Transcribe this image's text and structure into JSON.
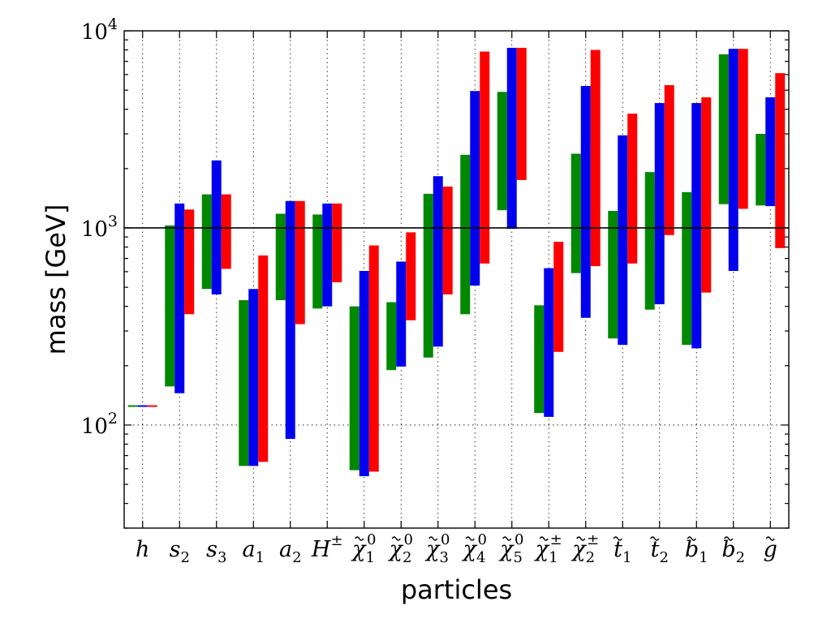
{
  "chart_data": {
    "type": "bar",
    "xlabel": "particles",
    "ylabel": "mass [GeV]",
    "yscale": "log",
    "ylim": [
      30,
      10000
    ],
    "y_tick_labels": [
      {
        "base": "10",
        "exp": "2",
        "value": 100
      },
      {
        "base": "10",
        "exp": "3",
        "value": 1000
      },
      {
        "base": "10",
        "exp": "4",
        "value": 10000
      }
    ],
    "grid": true,
    "reference_line": 1000,
    "categories": [
      {
        "base": "h",
        "sup": "",
        "sub": "",
        "tilde": false
      },
      {
        "base": "s",
        "sup": "",
        "sub": "2",
        "tilde": false
      },
      {
        "base": "s",
        "sup": "",
        "sub": "3",
        "tilde": false
      },
      {
        "base": "a",
        "sup": "",
        "sub": "1",
        "tilde": false
      },
      {
        "base": "a",
        "sup": "",
        "sub": "2",
        "tilde": false
      },
      {
        "base": "H",
        "sup": "±",
        "sub": "",
        "tilde": false
      },
      {
        "base": "χ",
        "sup": "0",
        "sub": "1",
        "tilde": true
      },
      {
        "base": "χ",
        "sup": "0",
        "sub": "2",
        "tilde": true
      },
      {
        "base": "χ",
        "sup": "0",
        "sub": "3",
        "tilde": true
      },
      {
        "base": "χ",
        "sup": "0",
        "sub": "4",
        "tilde": true
      },
      {
        "base": "χ",
        "sup": "0",
        "sub": "5",
        "tilde": true
      },
      {
        "base": "χ",
        "sup": "±",
        "sub": "1",
        "tilde": true
      },
      {
        "base": "χ",
        "sup": "±",
        "sub": "2",
        "tilde": true
      },
      {
        "base": "t",
        "sup": "",
        "sub": "1",
        "tilde": true
      },
      {
        "base": "t",
        "sup": "",
        "sub": "2",
        "tilde": true
      },
      {
        "base": "b",
        "sup": "",
        "sub": "1",
        "tilde": true
      },
      {
        "base": "b",
        "sup": "",
        "sub": "2",
        "tilde": true
      },
      {
        "base": "g",
        "sup": "",
        "sub": "",
        "tilde": true
      }
    ],
    "series": [
      {
        "color": "#008800",
        "ranges": [
          [
            124,
            126
          ],
          [
            157,
            1030
          ],
          [
            490,
            1480
          ],
          [
            62,
            430
          ],
          [
            430,
            1180
          ],
          [
            390,
            1170
          ],
          [
            59,
            400
          ],
          [
            190,
            420
          ],
          [
            220,
            1490
          ],
          [
            365,
            2350
          ],
          [
            1230,
            4900
          ],
          [
            115,
            405
          ],
          [
            590,
            2380
          ],
          [
            275,
            1220
          ],
          [
            385,
            1920
          ],
          [
            255,
            1520
          ],
          [
            1320,
            7600
          ],
          [
            1300,
            3000
          ]
        ]
      },
      {
        "color": "#0000ee",
        "ranges": [
          [
            124,
            126
          ],
          [
            145,
            1330
          ],
          [
            460,
            2200
          ],
          [
            62,
            490
          ],
          [
            85,
            1370
          ],
          [
            400,
            1330
          ],
          [
            55,
            605
          ],
          [
            198,
            675
          ],
          [
            250,
            1830
          ],
          [
            510,
            4950
          ],
          [
            990,
            8200
          ],
          [
            110,
            625
          ],
          [
            350,
            5250
          ],
          [
            255,
            2950
          ],
          [
            410,
            4300
          ],
          [
            245,
            4300
          ],
          [
            605,
            8100
          ],
          [
            1290,
            4600
          ]
        ]
      },
      {
        "color": "#ff0000",
        "ranges": [
          [
            124,
            126
          ],
          [
            365,
            1240
          ],
          [
            620,
            1480
          ],
          [
            65,
            725
          ],
          [
            325,
            1370
          ],
          [
            530,
            1330
          ],
          [
            58,
            815
          ],
          [
            340,
            950
          ],
          [
            460,
            1620
          ],
          [
            660,
            7850
          ],
          [
            1750,
            8200
          ],
          [
            235,
            850
          ],
          [
            640,
            8000
          ],
          [
            660,
            3800
          ],
          [
            920,
            5300
          ],
          [
            470,
            4600
          ],
          [
            1250,
            8100
          ],
          [
            790,
            6100
          ]
        ]
      }
    ]
  }
}
